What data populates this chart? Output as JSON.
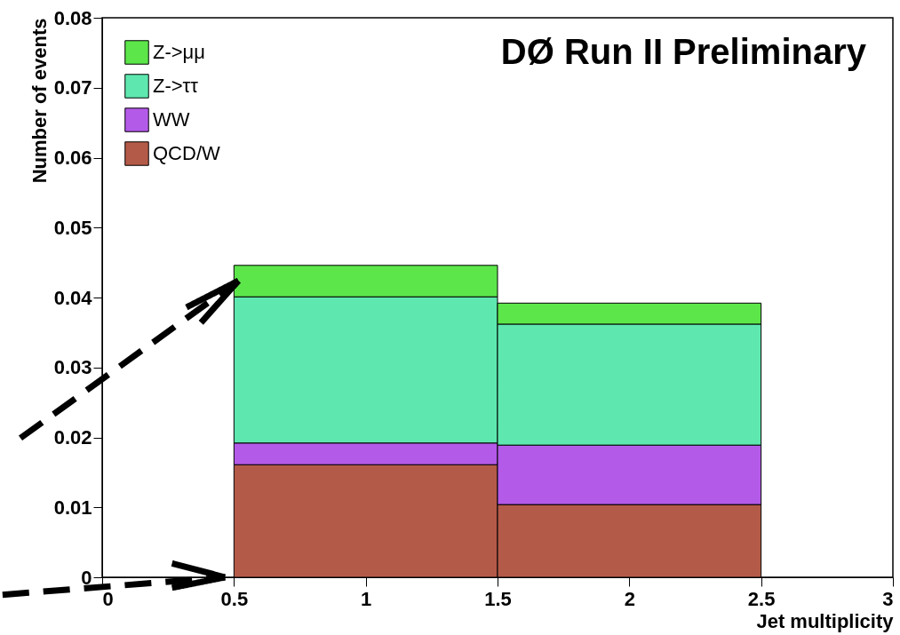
{
  "chart_data": {
    "type": "bar",
    "title": "DØ Run II Preliminary",
    "xlabel": "Jet multiplicity",
    "ylabel": "Number of events",
    "x": [
      1,
      2
    ],
    "stacked": true,
    "series": [
      {
        "name": "QCD/W",
        "color": "#b45a48",
        "values": [
          0.0161,
          0.0104
        ]
      },
      {
        "name": "WW",
        "color": "#b45ae8",
        "values": [
          0.0031,
          0.0085
        ]
      },
      {
        "name": "Z->ττ",
        "color": "#5ee8b0",
        "values": [
          0.0209,
          0.0173
        ]
      },
      {
        "name": "Z->μμ",
        "color": "#5ce64a",
        "values": [
          0.0045,
          0.003
        ]
      }
    ],
    "xlim": [
      0,
      3
    ],
    "xticks": [
      0,
      0.5,
      1,
      1.5,
      2,
      2.5,
      3
    ],
    "ylim": [
      0,
      0.08
    ],
    "yticks": [
      0,
      0.01,
      0.02,
      0.03,
      0.04,
      0.05,
      0.06,
      0.07,
      0.08
    ],
    "grid": false,
    "legend": "top left"
  }
}
